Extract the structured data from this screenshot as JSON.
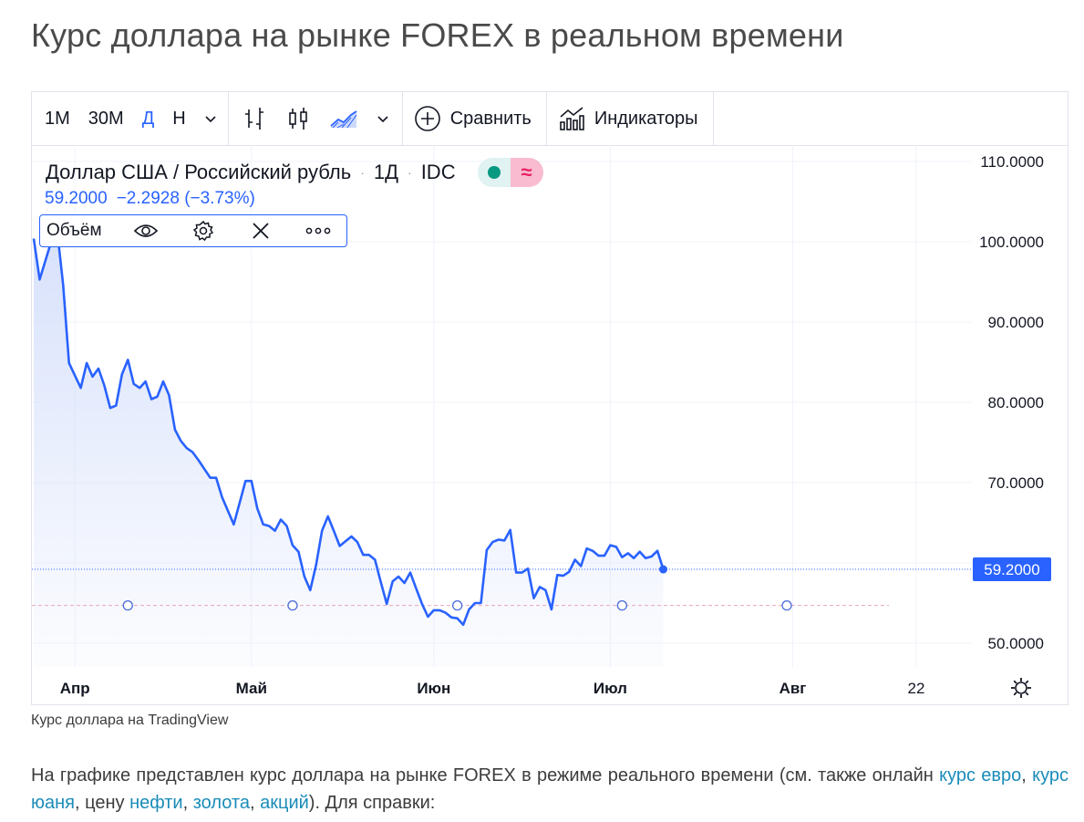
{
  "page": {
    "title": "Курс доллара на рынке FOREX в реальном времени",
    "caption": "Курс доллара на TradingView",
    "paragraph": {
      "t1": "На графике представлен курс доллара на рынке FOREX в режиме реального времени (см. также онлайн ",
      "link1": "курс евро",
      "t2": ", ",
      "link2": "курс юаня",
      "t3": ", цену ",
      "link3": "нефти",
      "t4": ", ",
      "link4": "золота",
      "t5": ", ",
      "link5": "акций",
      "t6": "). Для справки:"
    }
  },
  "toolbar": {
    "intervals": [
      "1М",
      "30М",
      "Д",
      "Н"
    ],
    "active_interval": "Д",
    "compare_label": "Сравнить",
    "indicators_label": "Индикаторы",
    "icons": [
      "chevron-down-icon",
      "bar-chart-icon",
      "candlestick-icon",
      "area-chart-icon",
      "chevron-down-icon",
      "plus-circle-icon",
      "indicators-icon"
    ]
  },
  "legend": {
    "symbol": "Доллар США / Российский рубль",
    "interval": "1Д",
    "source": "IDC",
    "price": "59.2000",
    "change": "−2.2928",
    "change_pct": "(−3.73%)",
    "status_live_color": "#089981",
    "status_delay_symbol": "≈"
  },
  "volume_legend": {
    "label": "Объём",
    "icons": [
      "eye-icon",
      "gear-icon",
      "close-icon",
      "more-icon"
    ]
  },
  "colors": {
    "line": "#2962ff",
    "area_top": "#d6e0fb",
    "price_label_bg": "#2962ff",
    "grid": "#f0f3fa"
  },
  "chart_data": {
    "type": "area",
    "title": "Доллар США / Российский рубль · 1Д · IDC",
    "xlabel": "",
    "ylabel": "",
    "ylim": [
      46,
      112
    ],
    "y_ticks": [
      "110.0000",
      "100.0000",
      "90.0000",
      "80.0000",
      "70.0000",
      "50.0000"
    ],
    "y_tick_values": [
      110,
      100,
      90,
      80,
      70,
      50
    ],
    "x_ticks": [
      {
        "label": "Апр",
        "date": "2022-04-01",
        "bold": true
      },
      {
        "label": "Май",
        "date": "2022-05-01",
        "bold": true
      },
      {
        "label": "Июн",
        "date": "2022-06-01",
        "bold": true
      },
      {
        "label": "Июл",
        "date": "2022-07-01",
        "bold": true
      },
      {
        "label": "Авг",
        "date": "2022-08-01",
        "bold": true
      },
      {
        "label": "22",
        "date": "2022-08-22",
        "bold": false
      }
    ],
    "last_price": 59.2,
    "last_price_label": "59.2000",
    "reference_level": 54.7,
    "event_markers": [
      "2022-04-10",
      "2022-05-08",
      "2022-06-05",
      "2022-07-03",
      "2022-07-31"
    ],
    "series": [
      {
        "values": [
          [
            "2022-03-25",
            100.4
          ],
          [
            "2022-03-26",
            95.3
          ],
          [
            "2022-03-28",
            100.1
          ],
          [
            "2022-03-29",
            101.3
          ],
          [
            "2022-03-30",
            94.6
          ],
          [
            "2022-03-31",
            84.9
          ],
          [
            "2022-04-02",
            81.8
          ],
          [
            "2022-04-03",
            84.9
          ],
          [
            "2022-04-04",
            83.2
          ],
          [
            "2022-04-05",
            84.2
          ],
          [
            "2022-04-06",
            82.1
          ],
          [
            "2022-04-07",
            79.3
          ],
          [
            "2022-04-08",
            79.6
          ],
          [
            "2022-04-09",
            83.5
          ],
          [
            "2022-04-10",
            85.3
          ],
          [
            "2022-04-11",
            82.3
          ],
          [
            "2022-04-12",
            81.8
          ],
          [
            "2022-04-13",
            82.6
          ],
          [
            "2022-04-14",
            80.4
          ],
          [
            "2022-04-15",
            80.7
          ],
          [
            "2022-04-16",
            82.6
          ],
          [
            "2022-04-17",
            80.9
          ],
          [
            "2022-04-18",
            76.6
          ],
          [
            "2022-04-19",
            75.2
          ],
          [
            "2022-04-20",
            74.3
          ],
          [
            "2022-04-21",
            73.8
          ],
          [
            "2022-04-22",
            72.8
          ],
          [
            "2022-04-24",
            70.6
          ],
          [
            "2022-04-25",
            70.6
          ],
          [
            "2022-04-26",
            68.2
          ],
          [
            "2022-04-28",
            64.8
          ],
          [
            "2022-04-29",
            67.5
          ],
          [
            "2022-04-30",
            70.2
          ],
          [
            "2022-05-01",
            70.2
          ],
          [
            "2022-05-02",
            66.8
          ],
          [
            "2022-05-03",
            64.8
          ],
          [
            "2022-05-04",
            64.6
          ],
          [
            "2022-05-05",
            64.0
          ],
          [
            "2022-05-06",
            65.4
          ],
          [
            "2022-05-07",
            64.6
          ],
          [
            "2022-05-08",
            62.2
          ],
          [
            "2022-05-09",
            61.4
          ],
          [
            "2022-05-10",
            58.3
          ],
          [
            "2022-05-11",
            56.6
          ],
          [
            "2022-05-12",
            59.8
          ],
          [
            "2022-05-13",
            64.0
          ],
          [
            "2022-05-14",
            65.8
          ],
          [
            "2022-05-15",
            64.0
          ],
          [
            "2022-05-16",
            62.1
          ],
          [
            "2022-05-18",
            63.3
          ],
          [
            "2022-05-19",
            62.6
          ],
          [
            "2022-05-20",
            61.0
          ],
          [
            "2022-05-21",
            61.0
          ],
          [
            "2022-05-22",
            60.4
          ],
          [
            "2022-05-23",
            57.6
          ],
          [
            "2022-05-24",
            54.9
          ],
          [
            "2022-05-25",
            57.7
          ],
          [
            "2022-05-26",
            58.3
          ],
          [
            "2022-05-27",
            57.5
          ],
          [
            "2022-05-28",
            58.8
          ],
          [
            "2022-05-29",
            56.8
          ],
          [
            "2022-05-30",
            54.9
          ],
          [
            "2022-05-31",
            53.3
          ],
          [
            "2022-06-01",
            54.1
          ],
          [
            "2022-06-02",
            54.1
          ],
          [
            "2022-06-03",
            53.8
          ],
          [
            "2022-06-04",
            53.2
          ],
          [
            "2022-06-05",
            53.1
          ],
          [
            "2022-06-06",
            52.3
          ],
          [
            "2022-06-07",
            54.2
          ],
          [
            "2022-06-08",
            55.0
          ],
          [
            "2022-06-09",
            55.0
          ],
          [
            "2022-06-10",
            61.6
          ],
          [
            "2022-06-11",
            62.6
          ],
          [
            "2022-06-12",
            62.9
          ],
          [
            "2022-06-13",
            62.8
          ],
          [
            "2022-06-14",
            64.1
          ],
          [
            "2022-06-15",
            58.8
          ],
          [
            "2022-06-16",
            58.8
          ],
          [
            "2022-06-17",
            59.3
          ],
          [
            "2022-06-18",
            55.6
          ],
          [
            "2022-06-19",
            57.0
          ],
          [
            "2022-06-20",
            56.6
          ],
          [
            "2022-06-21",
            54.2
          ],
          [
            "2022-06-22",
            58.5
          ],
          [
            "2022-06-23",
            58.4
          ],
          [
            "2022-06-24",
            58.9
          ],
          [
            "2022-06-25",
            60.4
          ],
          [
            "2022-06-26",
            59.6
          ],
          [
            "2022-06-27",
            61.8
          ],
          [
            "2022-06-28",
            61.5
          ],
          [
            "2022-06-29",
            60.9
          ],
          [
            "2022-06-30",
            60.9
          ],
          [
            "2022-07-01",
            62.2
          ],
          [
            "2022-07-02",
            62.0
          ],
          [
            "2022-07-03",
            60.7
          ],
          [
            "2022-07-04",
            61.2
          ],
          [
            "2022-07-05",
            60.6
          ],
          [
            "2022-07-06",
            61.4
          ],
          [
            "2022-07-07",
            60.6
          ],
          [
            "2022-07-08",
            60.8
          ],
          [
            "2022-07-09",
            61.5
          ],
          [
            "2022-07-10",
            59.2
          ]
        ]
      }
    ]
  }
}
